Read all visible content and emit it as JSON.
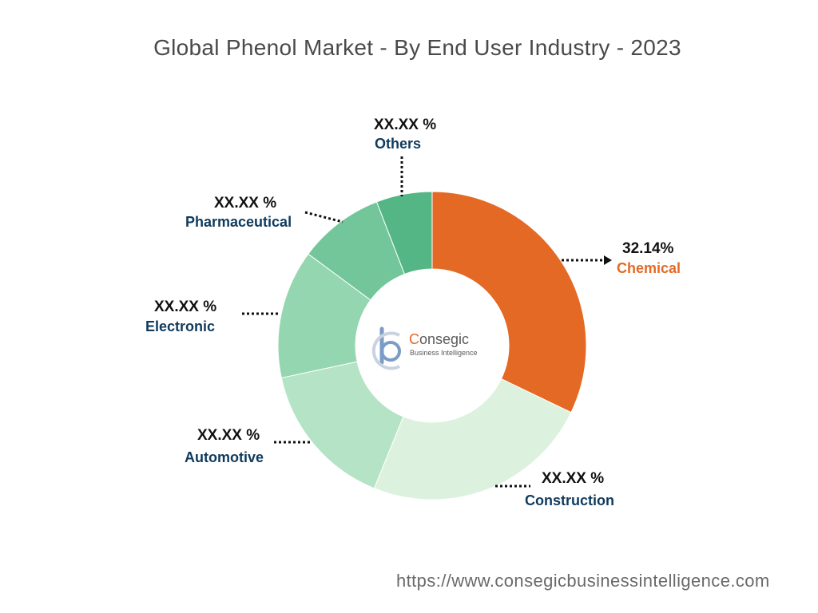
{
  "title": "Global Phenol Market - By End User Industry - 2023",
  "chart_data": {
    "type": "pie",
    "subtype": "donut",
    "title": "Global Phenol Market - By End User Industry - 2023",
    "slices": [
      {
        "name": "Chemical",
        "label": "32.14%",
        "value": 32.14,
        "color": "#e36925",
        "label_color": "#e36925"
      },
      {
        "name": "Construction",
        "label": "XX.XX %",
        "value": 24.0,
        "color": "#dcf2de",
        "label_color": "#0f3a5c"
      },
      {
        "name": "Automotive",
        "label": "XX.XX %",
        "value": 15.5,
        "color": "#b5e3c5",
        "label_color": "#0f3a5c"
      },
      {
        "name": "Electronic",
        "label": "XX.XX %",
        "value": 13.5,
        "color": "#94d6b0",
        "label_color": "#0f3a5c"
      },
      {
        "name": "Pharmaceutical",
        "label": "XX.XX %",
        "value": 9.0,
        "color": "#72c69a",
        "label_color": "#0f3a5c"
      },
      {
        "name": "Others",
        "label": "XX.XX %",
        "value": 5.86,
        "color": "#53b684",
        "label_color": "#0f3a5c"
      }
    ]
  },
  "logo": {
    "name_first": "C",
    "name_rest": "onsegic",
    "tagline": "Business Intelligence",
    "accent": "#e36925",
    "icon": "bc-logo-icon"
  },
  "source_url": "https://www.consegicbusinessintelligence.com"
}
